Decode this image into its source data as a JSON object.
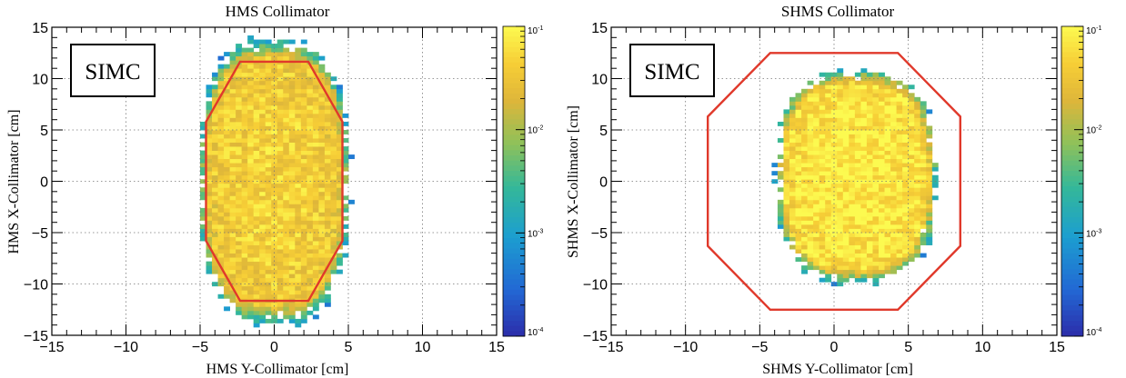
{
  "chart_data": [
    {
      "type": "heatmap",
      "title": "HMS  Collimator",
      "xlabel": "HMS Y-Collimator [cm]",
      "ylabel": "HMS X-Collimator [cm]",
      "xlim": [
        -15,
        15
      ],
      "ylim": [
        -15,
        15
      ],
      "x_ticks": [
        "−15",
        "−10",
        "−5",
        "0",
        "5",
        "10",
        "15"
      ],
      "y_ticks": [
        "15",
        "10",
        "5",
        "0",
        "−5",
        "−10",
        "−15"
      ],
      "z_scale": "log",
      "z_range": [
        0.0001,
        0.1
      ],
      "z_ticks": [
        {
          "base": "10",
          "exp": "-1",
          "value": 0.1
        },
        {
          "base": "10",
          "exp": "-2",
          "value": 0.01
        },
        {
          "base": "10",
          "exp": "-3",
          "value": 0.001
        },
        {
          "base": "10",
          "exp": "-4",
          "value": 0.0001
        }
      ],
      "grid": true,
      "label_box": "SIMC",
      "distribution": {
        "x_center": 0,
        "y_center": 0,
        "x_halfwidth": 5,
        "y_halfwidth": 13.5,
        "peak_density": 0.045
      },
      "collimator_outline": {
        "color": "#e0392b",
        "points": [
          [
            -2.3,
            11.65
          ],
          [
            2.3,
            11.65
          ],
          [
            4.6,
            5.8
          ],
          [
            4.6,
            -5.8
          ],
          [
            2.3,
            -11.65
          ],
          [
            -2.3,
            -11.65
          ],
          [
            -4.6,
            -5.8
          ],
          [
            -4.6,
            5.8
          ]
        ]
      }
    },
    {
      "type": "heatmap",
      "title": "SHMS Collimator",
      "xlabel": "SHMS Y-Collimator [cm]",
      "ylabel": "SHMS X-Collimator [cm]",
      "xlim": [
        -15,
        15
      ],
      "ylim": [
        -15,
        15
      ],
      "x_ticks": [
        "−15",
        "−10",
        "−5",
        "0",
        "5",
        "10",
        "15"
      ],
      "y_ticks": [
        "15",
        "10",
        "5",
        "0",
        "−5",
        "−10",
        "−15"
      ],
      "z_scale": "log",
      "z_range": [
        0.0001,
        0.1
      ],
      "z_ticks": [
        {
          "base": "10",
          "exp": "-1",
          "value": 0.1
        },
        {
          "base": "10",
          "exp": "-2",
          "value": 0.01
        },
        {
          "base": "10",
          "exp": "-3",
          "value": 0.001
        },
        {
          "base": "10",
          "exp": "-4",
          "value": 0.0001
        }
      ],
      "grid": true,
      "label_box": "SIMC",
      "distribution": {
        "x_center": 1.5,
        "y_center": 0.5,
        "x_halfwidth": 5.3,
        "y_halfwidth": 10,
        "peak_density": 0.08
      },
      "collimator_outline": {
        "color": "#e0392b",
        "points": [
          [
            -4.3,
            12.5
          ],
          [
            4.3,
            12.5
          ],
          [
            8.5,
            6.3
          ],
          [
            8.5,
            -6.3
          ],
          [
            4.3,
            -12.5
          ],
          [
            -4.3,
            -12.5
          ],
          [
            -8.5,
            -6.3
          ],
          [
            -8.5,
            6.3
          ]
        ]
      }
    }
  ]
}
